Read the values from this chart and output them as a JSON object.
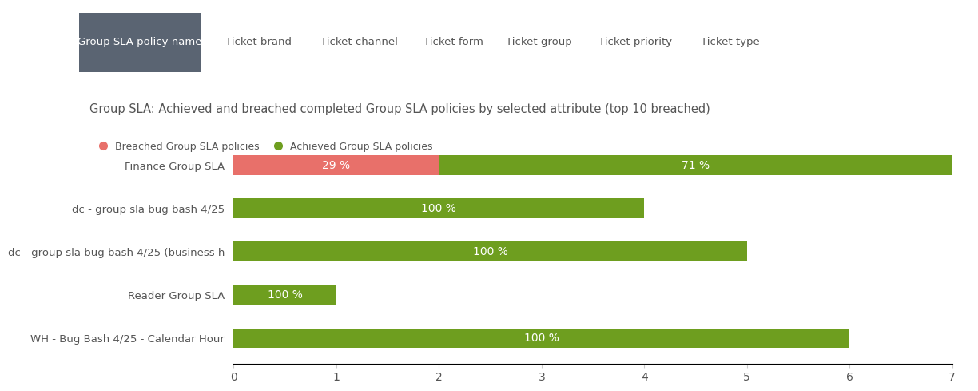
{
  "title": "Group SLA: Achieved and breached completed Group SLA policies by selected attribute (top 10 breached)",
  "tabs": [
    "Group SLA policy name",
    "Ticket brand",
    "Ticket channel",
    "Ticket form",
    "Ticket group",
    "Ticket priority",
    "Ticket type"
  ],
  "active_tab": "Group SLA policy name",
  "categories": [
    "Finance Group SLA",
    "dc - group sla bug bash 4/25",
    "dc - group sla bug bash 4/25 (business h",
    "Reader Group SLA",
    "WH - Bug Bash 4/25 - Calendar Hour"
  ],
  "breached_values": [
    2,
    0,
    0,
    0,
    0
  ],
  "achieved_values": [
    5,
    4,
    5,
    1,
    6
  ],
  "breached_pcts": [
    "29 %",
    "",
    "",
    "",
    ""
  ],
  "achieved_pcts": [
    "71 %",
    "100 %",
    "100 %",
    "100 %",
    "100 %"
  ],
  "breached_color": "#e8706a",
  "achieved_color": "#6e9e1f",
  "legend_breached_label": "Breached Group SLA policies",
  "legend_achieved_label": "Achieved Group SLA policies",
  "xlim": [
    0,
    7
  ],
  "xticks": [
    0,
    1,
    2,
    3,
    4,
    5,
    6,
    7
  ],
  "bar_height": 0.45,
  "background_color": "#ffffff",
  "tab_active_color": "#5a6472",
  "tab_active_text_color": "#ffffff",
  "tab_inactive_text_color": "#555555",
  "title_color": "#555555",
  "label_color": "#555555",
  "tick_color": "#555555",
  "bar_label_color": "#ffffff",
  "bar_label_fontsize": 10
}
